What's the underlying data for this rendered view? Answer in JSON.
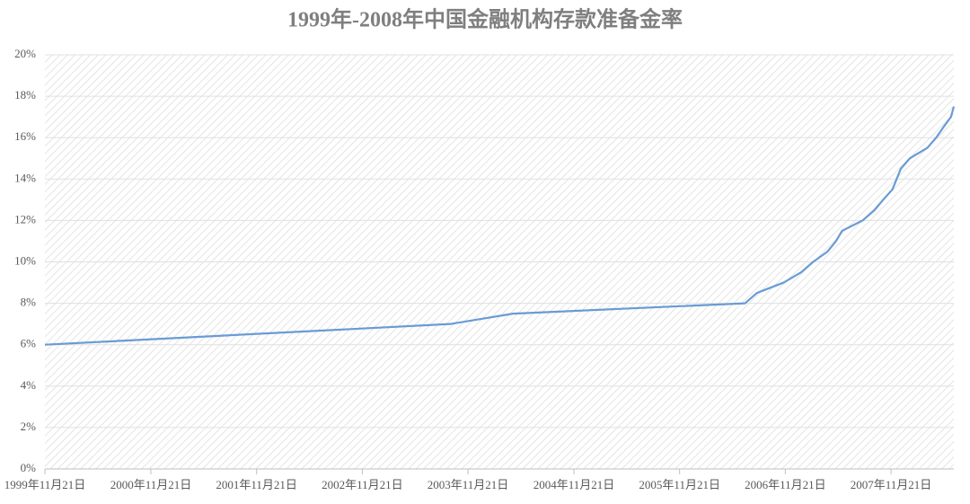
{
  "chart_data": {
    "type": "line",
    "title": "1999年-2008年中国金融机构存款准备金率",
    "x": [
      "1999-11-21",
      "2003-09-21",
      "2004-04-25",
      "2006-07-05",
      "2006-08-15",
      "2006-11-15",
      "2007-01-15",
      "2007-02-25",
      "2007-04-16",
      "2007-05-15",
      "2007-06-05",
      "2007-08-15",
      "2007-09-25",
      "2007-10-25",
      "2007-11-26",
      "2007-12-25",
      "2008-01-25",
      "2008-03-25",
      "2008-04-25",
      "2008-05-20",
      "2008-06-15",
      "2008-06-25"
    ],
    "values": [
      6,
      7,
      7.5,
      8,
      8.5,
      9,
      9.5,
      10,
      10.5,
      11,
      11.5,
      12,
      12.5,
      13,
      13.5,
      14.5,
      15,
      15.5,
      16,
      16.5,
      17,
      17.5
    ],
    "color": "#6a9bd4",
    "xlim": [
      "1999-11-21",
      "2008-06-25"
    ],
    "xticks": [
      {
        "value": "1999-11-21",
        "label": "1999年11月21日"
      },
      {
        "value": "2000-11-21",
        "label": "2000年11月21日"
      },
      {
        "value": "2001-11-21",
        "label": "2001年11月21日"
      },
      {
        "value": "2002-11-21",
        "label": "2002年11月21日"
      },
      {
        "value": "2003-11-21",
        "label": "2003年11月21日"
      },
      {
        "value": "2004-11-21",
        "label": "2004年11月21日"
      },
      {
        "value": "2005-11-21",
        "label": "2005年11月21日"
      },
      {
        "value": "2006-11-21",
        "label": "2006年11月21日"
      },
      {
        "value": "2007-11-21",
        "label": "2007年11月21日"
      }
    ],
    "ylim": [
      0,
      20
    ],
    "yticks": [
      {
        "value": 0,
        "label": "0%"
      },
      {
        "value": 2,
        "label": "2%"
      },
      {
        "value": 4,
        "label": "4%"
      },
      {
        "value": 6,
        "label": "6%"
      },
      {
        "value": 8,
        "label": "8%"
      },
      {
        "value": 10,
        "label": "10%"
      },
      {
        "value": 12,
        "label": "12%"
      },
      {
        "value": 14,
        "label": "14%"
      },
      {
        "value": 16,
        "label": "16%"
      },
      {
        "value": 18,
        "label": "18%"
      },
      {
        "value": 20,
        "label": "20%"
      }
    ],
    "grid": true
  }
}
